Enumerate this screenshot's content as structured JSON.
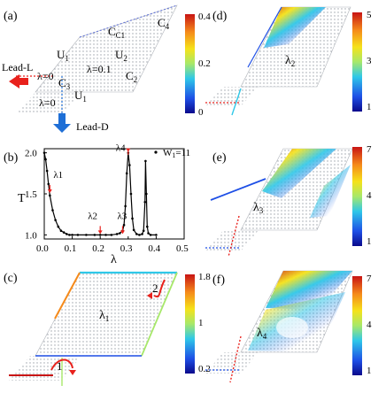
{
  "panels": {
    "a": {
      "label": "(a)",
      "regions": [
        "C1",
        "C2",
        "C3",
        "C4",
        "U1",
        "U2",
        "U1"
      ],
      "lambda_labels": [
        "λ=0",
        "λ=0.1",
        "λ=0"
      ],
      "leads": [
        "Lead-L",
        "Lead-D"
      ],
      "colorbar": {
        "ticks": [
          "0.4",
          "0.2",
          "0"
        ]
      }
    },
    "b": {
      "label": "(b)",
      "legend": "W",
      "legend_sub": "1",
      "legend_value": "=11",
      "annotations": [
        "λ1",
        "λ2",
        "λ3",
        "λ4"
      ]
    },
    "c": {
      "label": "(c)",
      "center": "λ1",
      "arrows": [
        "1",
        "2"
      ],
      "colorbar": {
        "ticks": [
          "1.8",
          "1",
          "0.2"
        ]
      }
    },
    "d": {
      "label": "(d)",
      "center": "λ2",
      "colorbar": {
        "ticks": [
          "5",
          "3",
          "1"
        ]
      }
    },
    "e": {
      "label": "(e)",
      "center": "λ3",
      "colorbar": {
        "ticks": [
          "7",
          "4",
          "1"
        ]
      }
    },
    "f": {
      "label": "(f)",
      "center": "λ4",
      "colorbar": {
        "ticks": [
          "7",
          "4",
          "1"
        ]
      }
    }
  },
  "chart_data": {
    "type": "line",
    "panel": "(b)",
    "xlabel": "λ",
    "ylabel": "T",
    "xlim": [
      0.0,
      0.5
    ],
    "ylim": [
      0.95,
      2.05
    ],
    "xticks": [
      "0.0",
      "0.1",
      "0.2",
      "0.3",
      "0.4",
      "0.5"
    ],
    "yticks": [
      "1.0",
      "1.5",
      "2.0"
    ],
    "series": [
      {
        "name": "W1=11",
        "x": [
          0.0,
          0.005,
          0.01,
          0.015,
          0.02,
          0.03,
          0.04,
          0.05,
          0.06,
          0.07,
          0.08,
          0.09,
          0.1,
          0.12,
          0.15,
          0.18,
          0.2,
          0.22,
          0.24,
          0.26,
          0.27,
          0.28,
          0.285,
          0.29,
          0.295,
          0.3,
          0.305,
          0.31,
          0.315,
          0.32,
          0.33,
          0.34,
          0.35,
          0.355,
          0.36,
          0.362,
          0.365,
          0.368,
          0.372,
          0.38,
          0.4
        ],
        "y": [
          2.0,
          1.92,
          1.78,
          1.62,
          1.48,
          1.3,
          1.18,
          1.1,
          1.05,
          1.03,
          1.01,
          1.0,
          1.0,
          1.0,
          1.0,
          1.0,
          1.0,
          1.0,
          1.0,
          1.01,
          1.02,
          1.05,
          1.12,
          1.35,
          1.75,
          2.0,
          1.85,
          1.5,
          1.2,
          1.06,
          1.01,
          1.0,
          1.01,
          1.05,
          1.4,
          1.9,
          1.5,
          1.1,
          1.02,
          1.0,
          1.0
        ]
      }
    ],
    "markers": [
      {
        "label": "λ1",
        "x": 0.02,
        "y": 1.5
      },
      {
        "label": "λ2",
        "x": 0.2,
        "y": 1.0
      },
      {
        "label": "λ3",
        "x": 0.28,
        "y": 1.0
      },
      {
        "label": "λ4",
        "x": 0.3,
        "y": 2.0
      }
    ]
  },
  "colors": {
    "lead": "#e8211c",
    "lead_down": "#1f6fd6",
    "colormap": [
      "#0a0a8c",
      "#1e5fe0",
      "#2fc8e8",
      "#a7e86a",
      "#f5e21a",
      "#f58a1a",
      "#c81414"
    ]
  }
}
